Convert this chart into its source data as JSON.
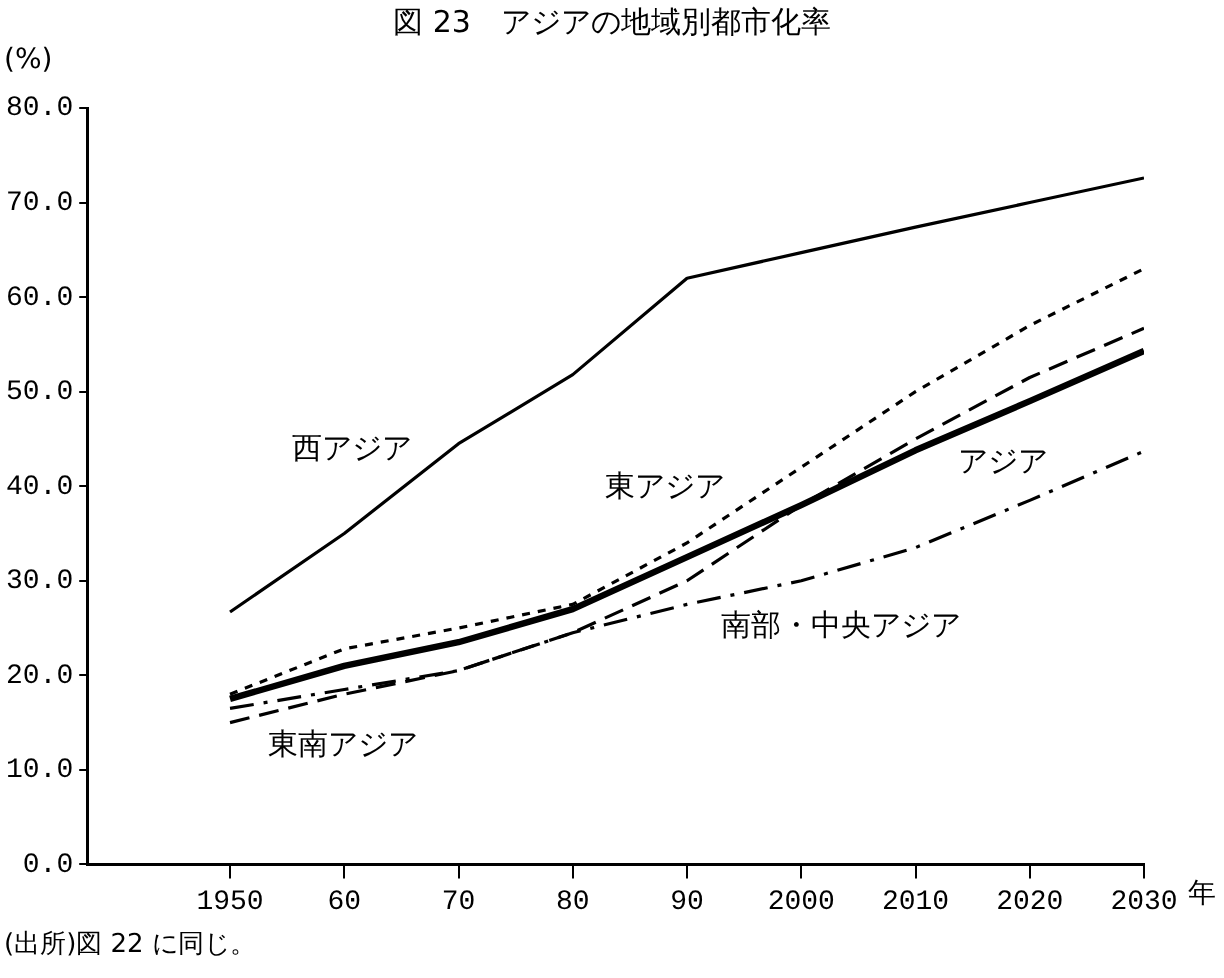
{
  "chart_data": {
    "type": "line",
    "title": "図 23　アジアの地域別都市化率",
    "ylabel": "(%)",
    "xlabel": "年",
    "annotations": [
      "(出所)図 22 に同じ。"
    ],
    "x": [
      1950,
      1960,
      1970,
      1980,
      1990,
      2000,
      2010,
      2020,
      2030
    ],
    "xlim": [
      1937.5,
      2030
    ],
    "xticks": [
      1950,
      {
        "value": 1960,
        "label": "60"
      },
      {
        "value": 1970,
        "label": "70"
      },
      {
        "value": 1980,
        "label": "80"
      },
      {
        "value": 1990,
        "label": "90"
      },
      2000,
      2010,
      2020,
      2030
    ],
    "ylim": [
      0,
      80
    ],
    "yticks": [
      {
        "value": 0,
        "label": "0.0"
      },
      {
        "value": 10,
        "label": "10.0"
      },
      {
        "value": 20,
        "label": "20.0"
      },
      {
        "value": 30,
        "label": "30.0"
      },
      {
        "value": 40,
        "label": "40.0"
      },
      {
        "value": 50,
        "label": "50.0"
      },
      {
        "value": 60,
        "label": "60.0"
      },
      {
        "value": 70,
        "label": "70.0"
      },
      {
        "value": 80,
        "label": "80.0"
      }
    ],
    "grid": false,
    "legend": false,
    "marker": "none",
    "series": [
      {
        "name": "西アジア",
        "color": "#000000",
        "line_style": "solid",
        "values": [
          26.7,
          35,
          44.5,
          51.8,
          62,
          64.7,
          67.4,
          70,
          72.6
        ]
      },
      {
        "name": "東アジア",
        "color": "#000000",
        "line_style": "dotted",
        "values": [
          18,
          22.8,
          25,
          27.5,
          34,
          42,
          50,
          57,
          63
        ]
      },
      {
        "name": "アジア",
        "color": "#000000",
        "line_style": "solid",
        "values": [
          17.5,
          21,
          23.5,
          27,
          32.5,
          38,
          43.8,
          49,
          54.3
        ]
      },
      {
        "name": "東南アジア",
        "color": "#000000",
        "line_style": "dashed",
        "values": [
          15,
          18,
          20.5,
          24.5,
          30,
          38,
          45,
          51.5,
          56.7
        ]
      },
      {
        "name": "南部・中央アジア",
        "color": "#000000",
        "line_style": "dashdot",
        "values": [
          16.5,
          18.5,
          20.5,
          24.5,
          27.5,
          30,
          33.5,
          38.5,
          43.7
        ]
      }
    ]
  }
}
